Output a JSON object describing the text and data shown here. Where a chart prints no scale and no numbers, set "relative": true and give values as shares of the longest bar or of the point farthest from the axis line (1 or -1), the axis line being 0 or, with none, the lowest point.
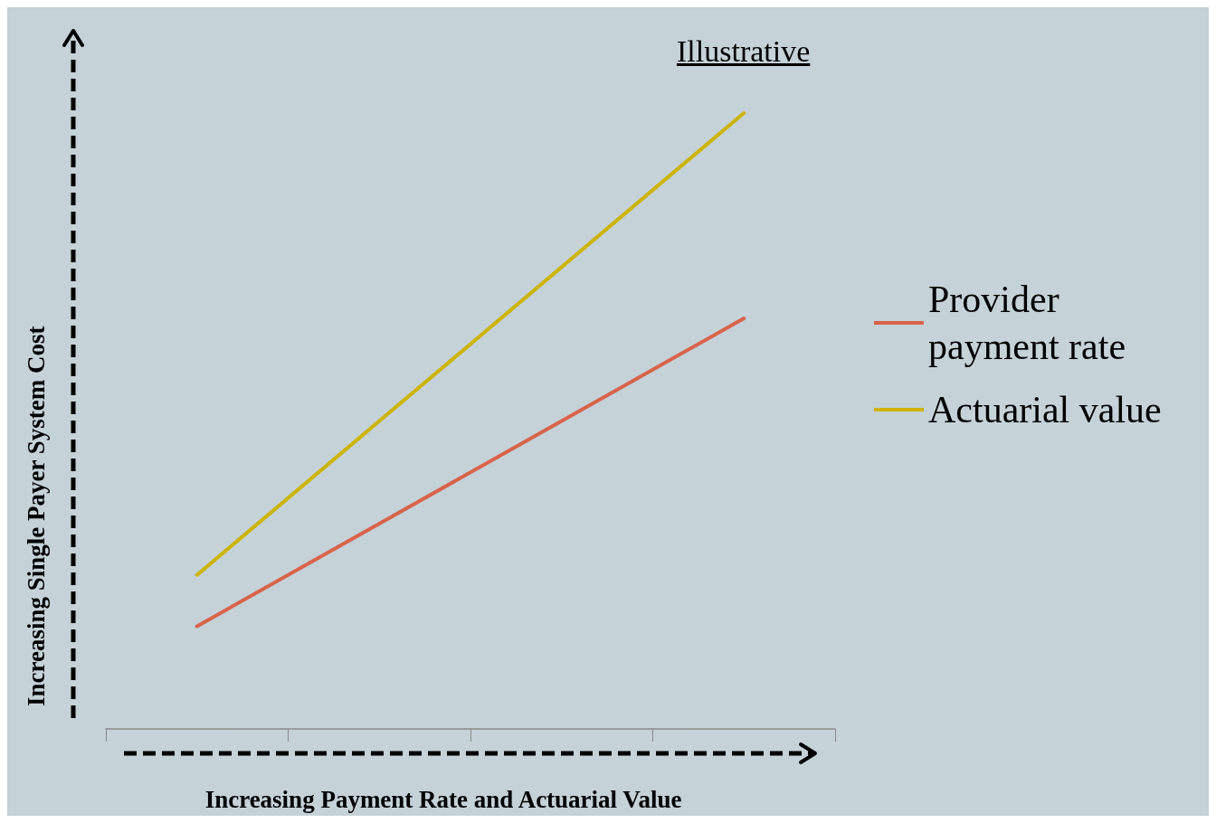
{
  "chart_data": {
    "type": "line",
    "relative": true,
    "xlabel": "Increasing Payment Rate and Actuarial Value",
    "ylabel": "Increasing Single Payer System Cost",
    "annotations": [
      "Illustrative"
    ],
    "categories": [
      null,
      null,
      null,
      null
    ],
    "series": [
      {
        "name": "Provider payment rate",
        "color": "#d9634b",
        "values": [
          0.1667,
          0.3333,
          0.5,
          0.6667
        ]
      },
      {
        "name": "Actuarial value",
        "color": "#cdb300",
        "values": [
          0.25,
          0.5,
          0.75,
          1
        ]
      }
    ],
    "legend": "right",
    "grid": false,
    "marker": "none",
    "line_style": "solid"
  }
}
